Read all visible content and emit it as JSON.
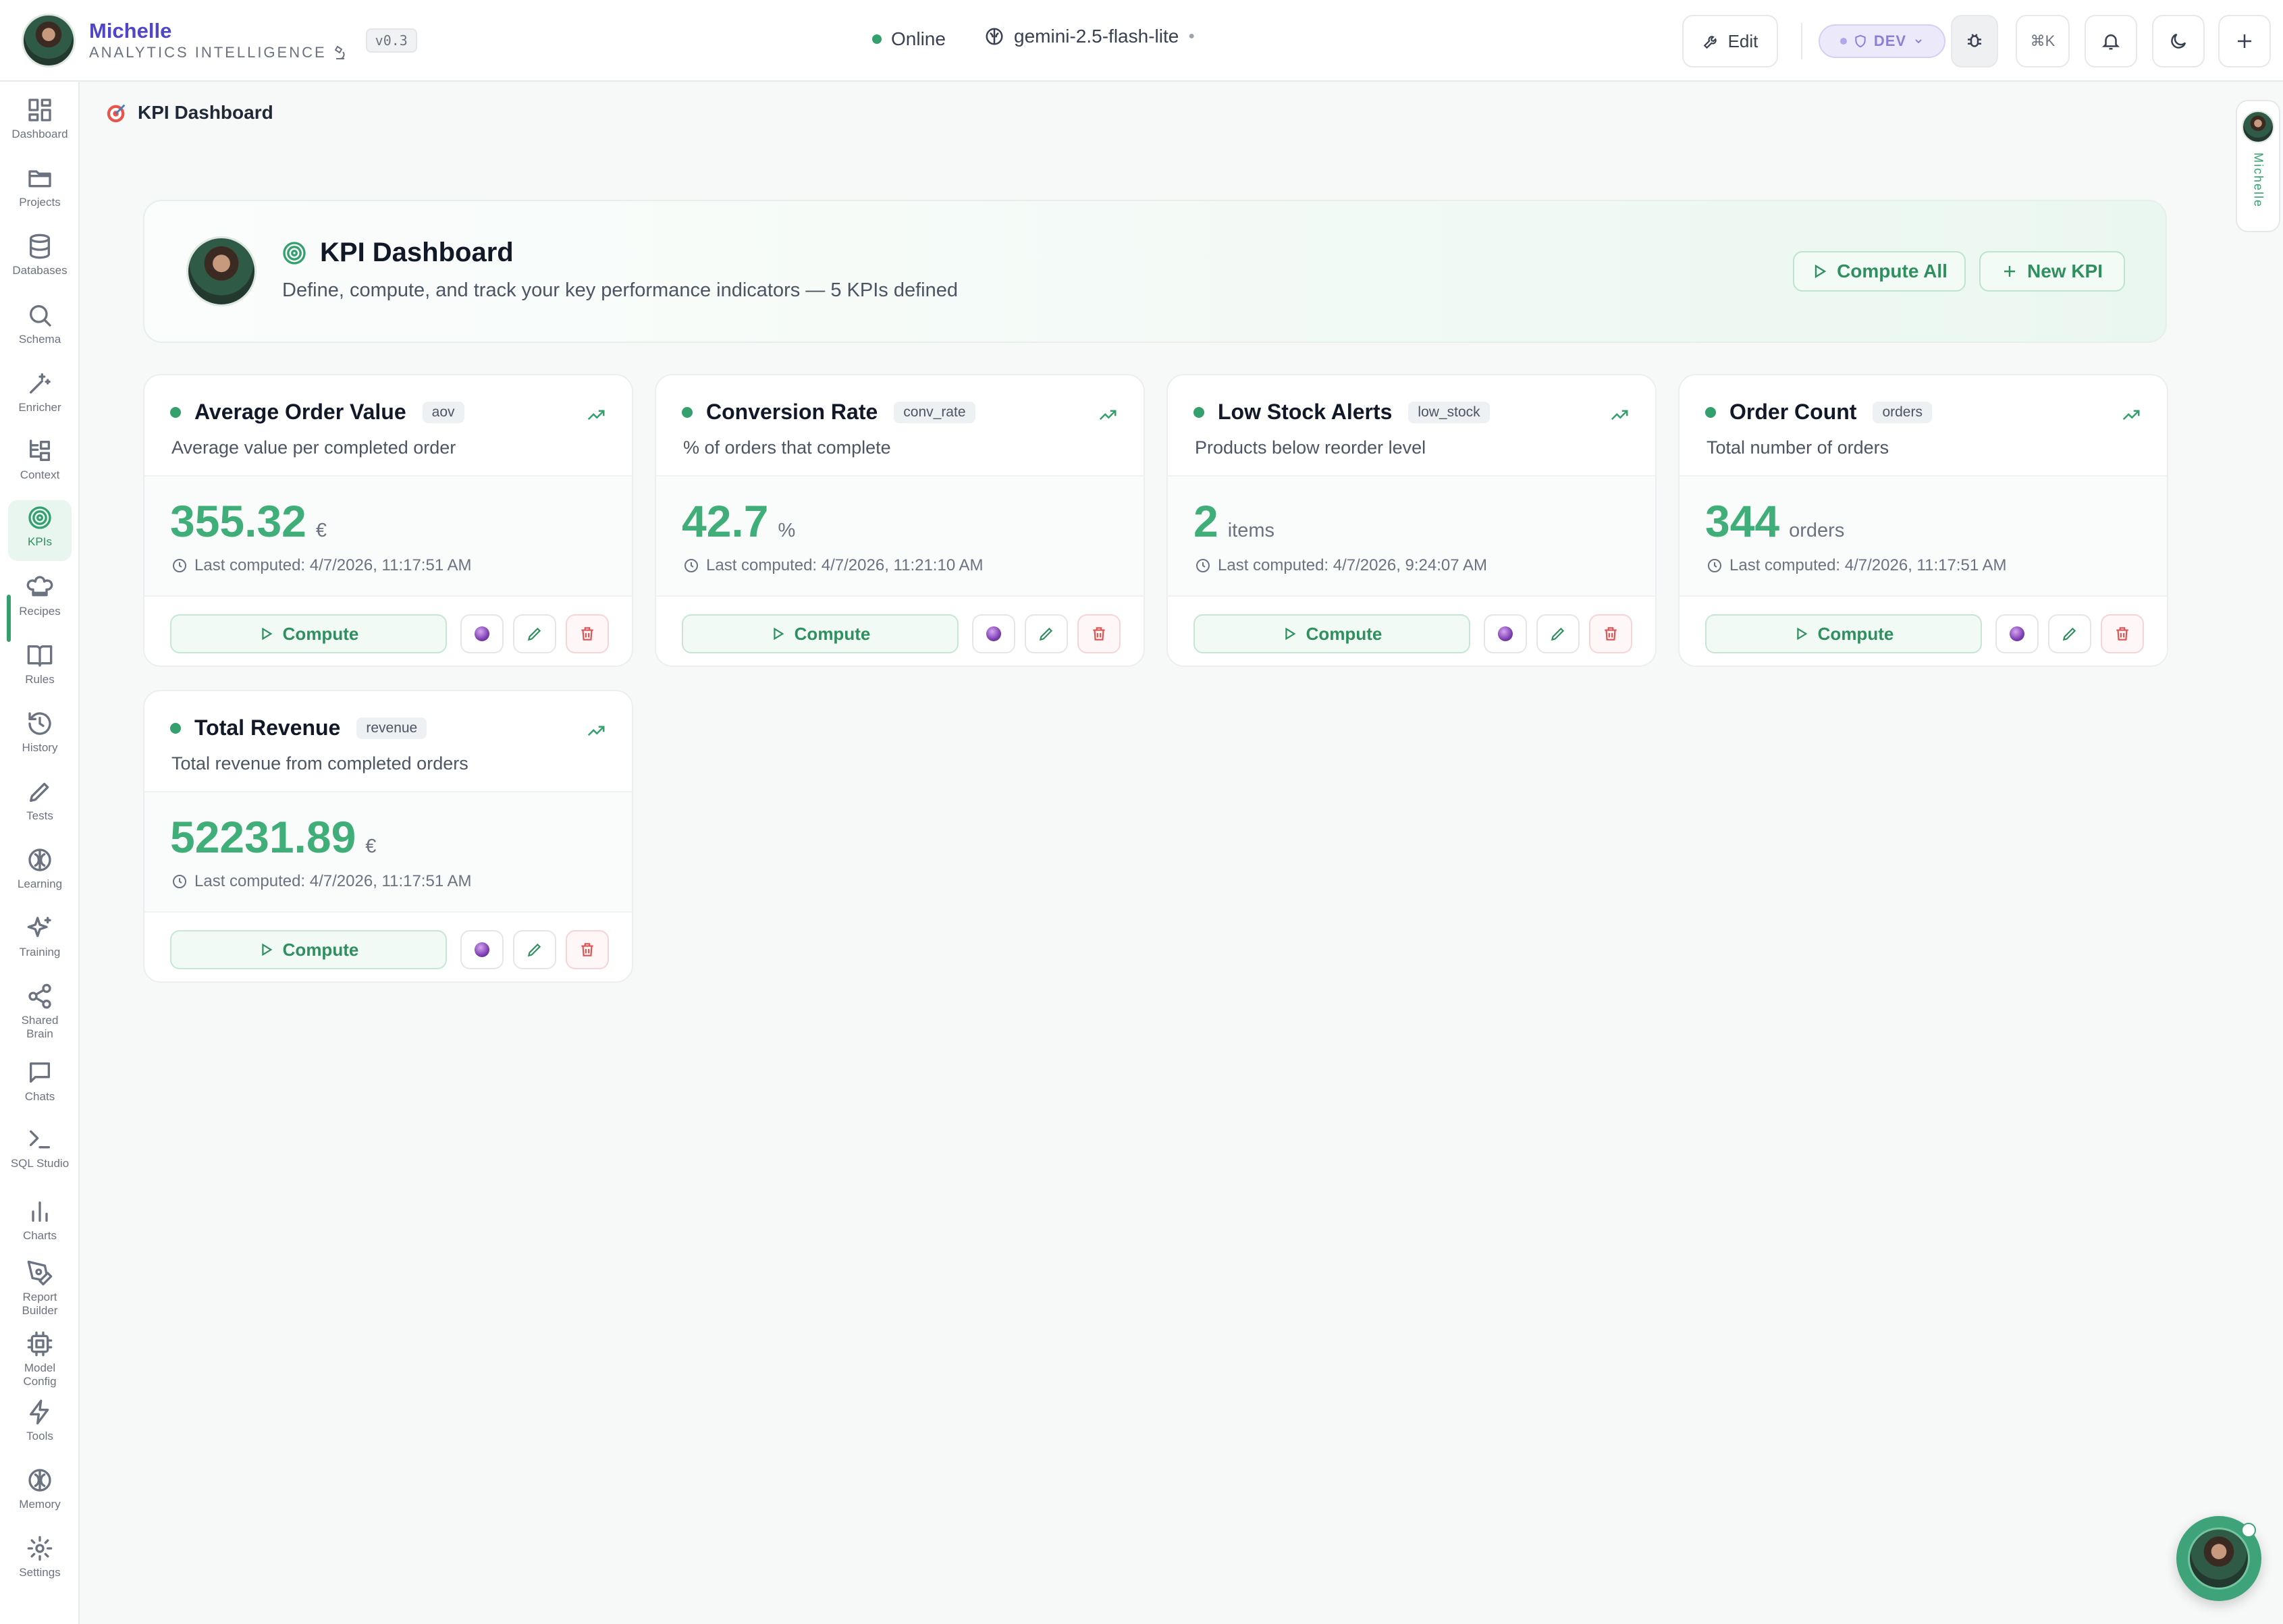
{
  "app": {
    "name": "Michelle",
    "subtitle": "ANALYTICS INTELLIGENCE",
    "version": "v0.3",
    "status": "Online",
    "model": "gemini-2.5-flash-lite",
    "edit_label": "Edit",
    "env_label": "DEV",
    "shortcut": "⌘K",
    "rail_label": "Michelle"
  },
  "sidebar": {
    "items": [
      {
        "label": "Dashboard",
        "icon": "dashboard-icon"
      },
      {
        "label": "Projects",
        "icon": "folder-icon"
      },
      {
        "label": "Databases",
        "icon": "database-icon"
      },
      {
        "label": "Schema",
        "icon": "search-icon"
      },
      {
        "label": "Enricher",
        "icon": "wand-icon"
      },
      {
        "label": "Context",
        "icon": "context-icon"
      },
      {
        "label": "KPIs",
        "icon": "target-icon"
      },
      {
        "label": "Recipes",
        "icon": "chef-hat-icon"
      },
      {
        "label": "Rules",
        "icon": "book-icon"
      },
      {
        "label": "History",
        "icon": "history-icon"
      },
      {
        "label": "Tests",
        "icon": "pencil-icon"
      },
      {
        "label": "Learning",
        "icon": "brain-icon"
      },
      {
        "label": "Training",
        "icon": "sparkles-icon"
      },
      {
        "label": "Shared Brain",
        "icon": "share-icon"
      },
      {
        "label": "Chats",
        "icon": "chat-icon"
      },
      {
        "label": "SQL Studio",
        "icon": "terminal-icon"
      },
      {
        "label": "Charts",
        "icon": "bar-chart-icon"
      },
      {
        "label": "Report Builder",
        "icon": "pen-tool-icon"
      },
      {
        "label": "Model Config",
        "icon": "cpu-icon"
      },
      {
        "label": "Tools",
        "icon": "zap-icon"
      },
      {
        "label": "Memory",
        "icon": "brain-icon"
      },
      {
        "label": "Settings",
        "icon": "gear-icon"
      }
    ],
    "active": "KPIs"
  },
  "page": {
    "breadcrumb": "KPI Dashboard",
    "title": "KPI Dashboard",
    "subtitle": "Define, compute, and track your key performance indicators — 5 KPIs defined",
    "compute_all": "Compute All",
    "new_kpi": "New KPI"
  },
  "kpis": [
    {
      "name": "Average Order Value",
      "key": "aov",
      "description": "Average value per completed order",
      "value": "355.32",
      "unit": "€",
      "last_computed": "Last computed: 4/7/2026, 11:17:51 AM",
      "compute_label": "Compute"
    },
    {
      "name": "Conversion Rate",
      "key": "conv_rate",
      "description": "% of orders that complete",
      "value": "42.7",
      "unit": "%",
      "last_computed": "Last computed: 4/7/2026, 11:21:10 AM",
      "compute_label": "Compute"
    },
    {
      "name": "Low Stock Alerts",
      "key": "low_stock",
      "description": "Products below reorder level",
      "value": "2",
      "unit": "items",
      "last_computed": "Last computed: 4/7/2026, 9:24:07 AM",
      "compute_label": "Compute"
    },
    {
      "name": "Order Count",
      "key": "orders",
      "description": "Total number of orders",
      "value": "344",
      "unit": "orders",
      "last_computed": "Last computed: 4/7/2026, 11:17:51 AM",
      "compute_label": "Compute"
    },
    {
      "name": "Total Revenue",
      "key": "revenue",
      "description": "Total revenue from completed orders",
      "value": "52231.89",
      "unit": "€",
      "last_computed": "Last computed: 4/7/2026, 11:17:51 AM",
      "compute_label": "Compute"
    }
  ],
  "colors": {
    "accent": "#34a06d",
    "value": "#3fae78",
    "brand": "#4f46c8",
    "danger": "#e05252"
  }
}
